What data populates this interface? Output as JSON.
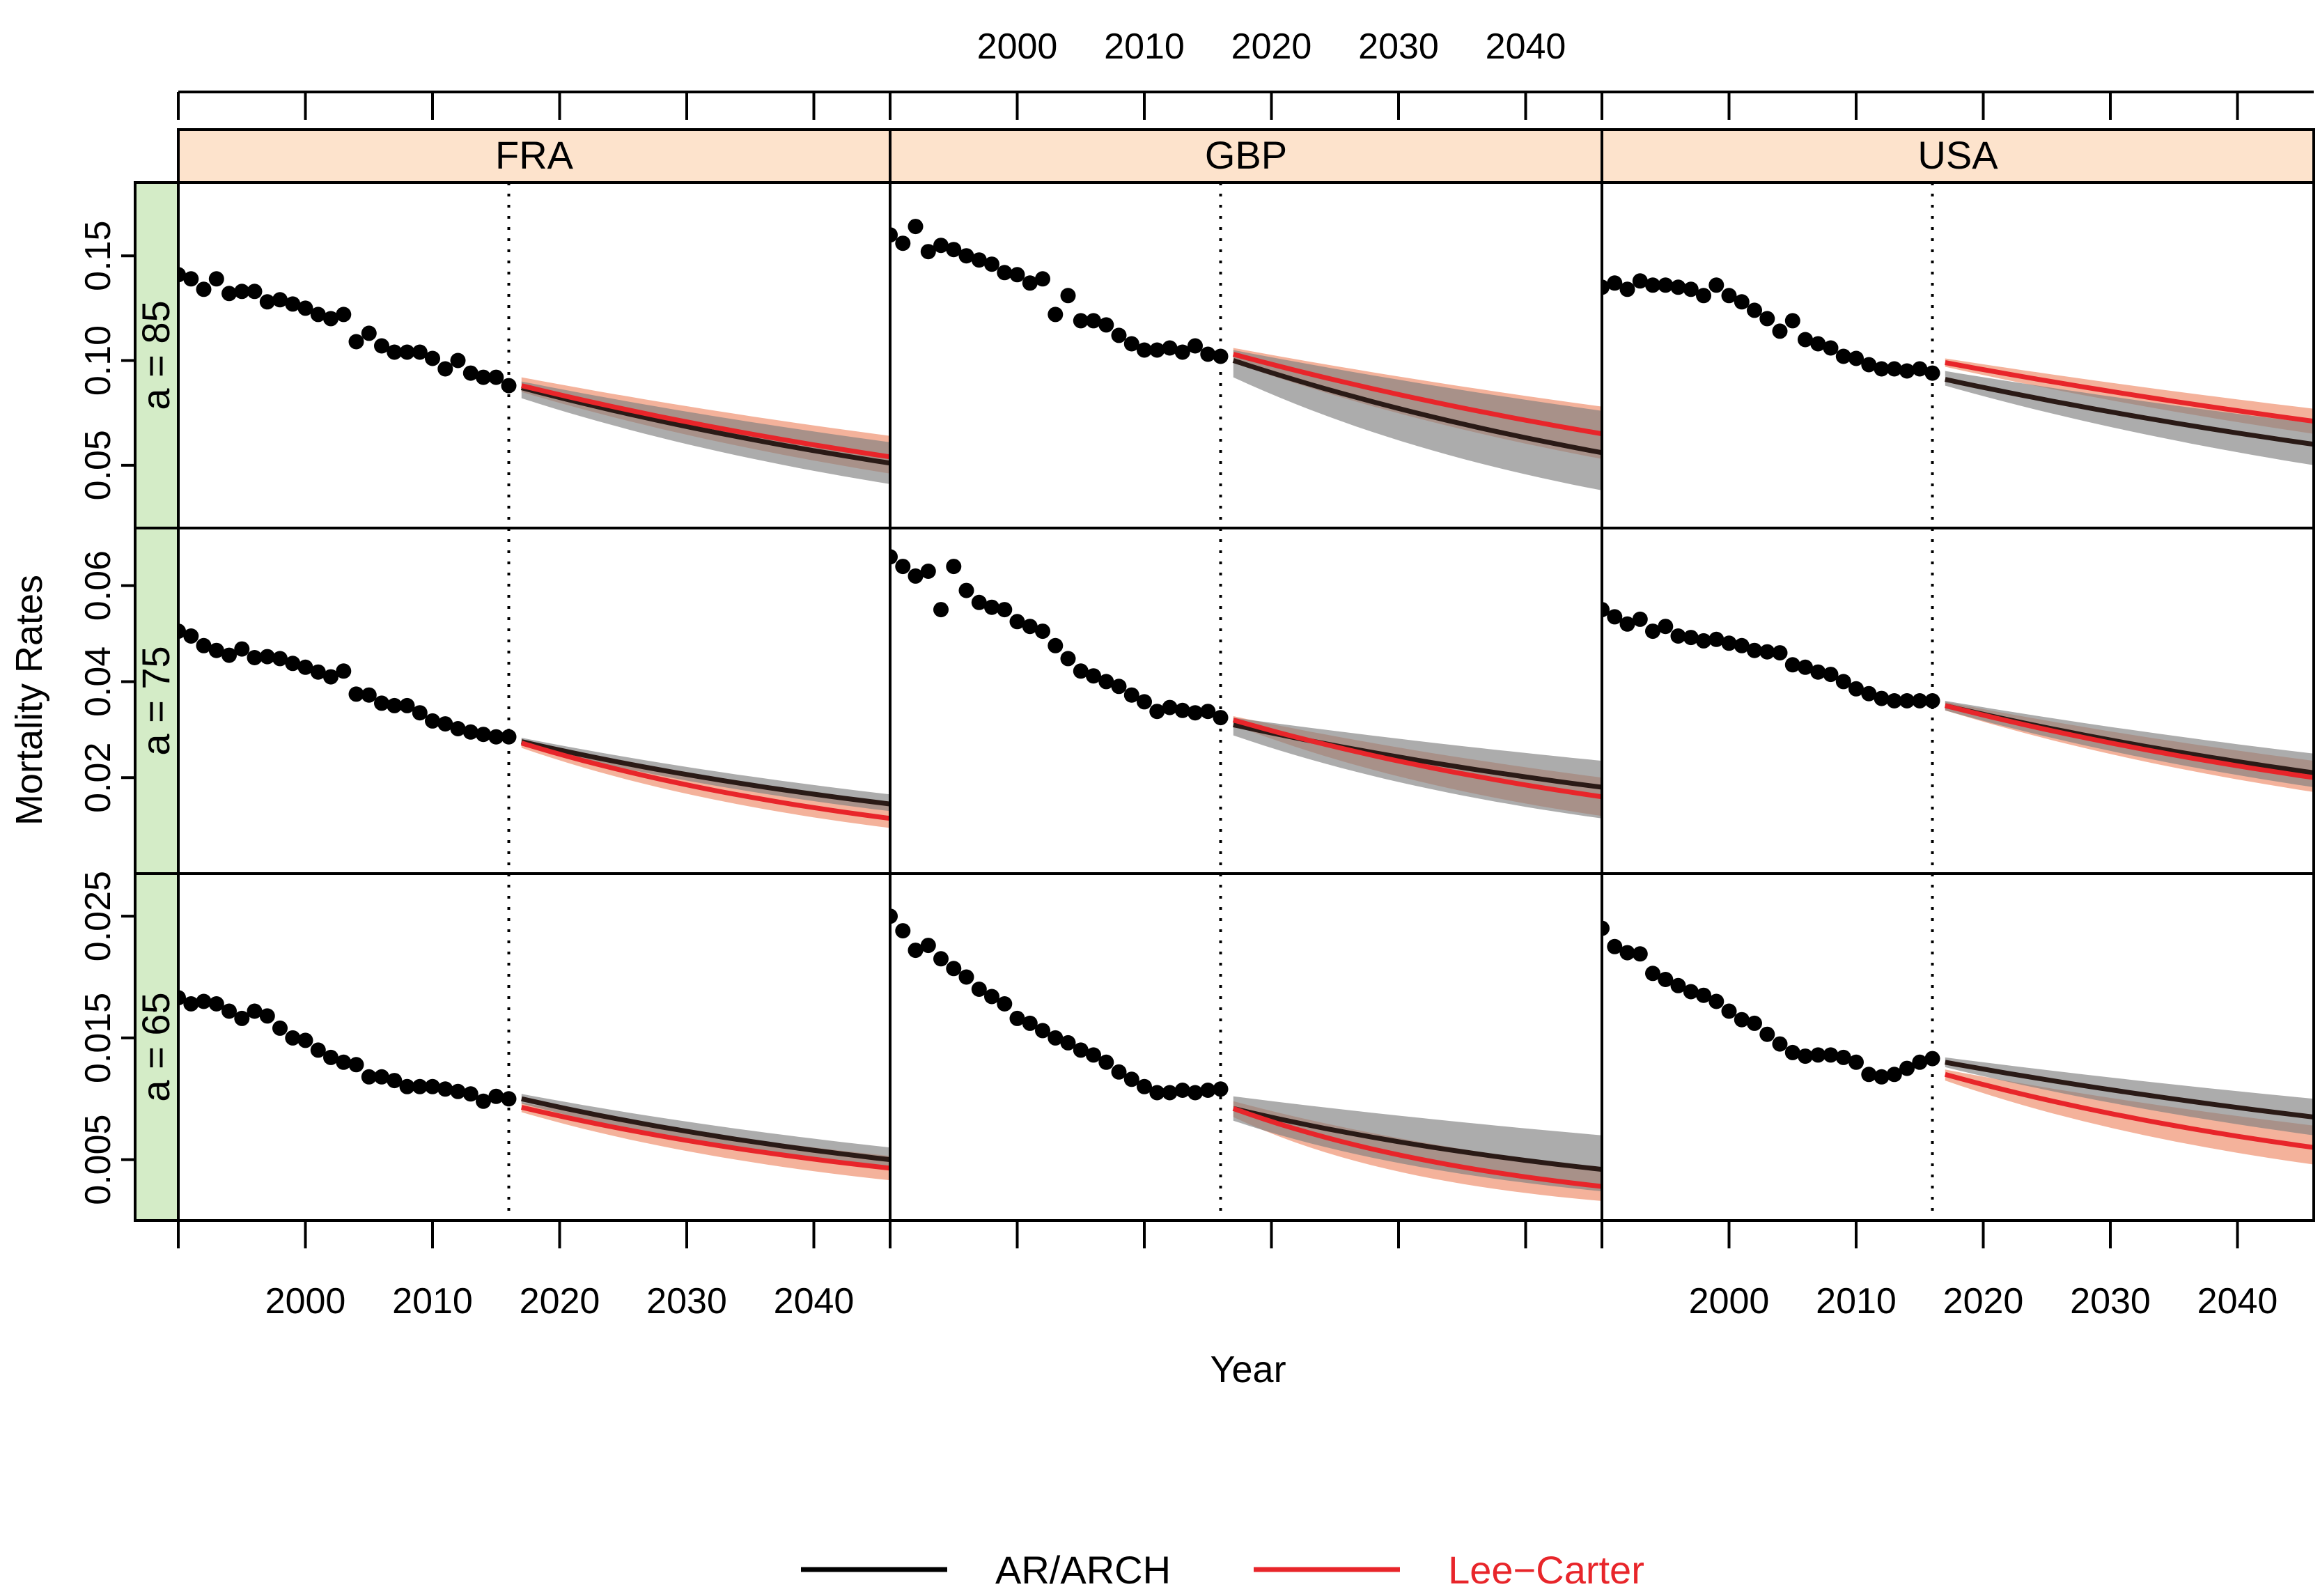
{
  "chart_data": {
    "type": "line",
    "title": "",
    "xlabel": "Year",
    "ylabel": "Mortality Rates",
    "xlim": [
      1990,
      2046
    ],
    "xticks": [
      2000,
      2010,
      2020,
      2030,
      2040
    ],
    "cutoff_year": 2016,
    "x_observed": [
      1990,
      1991,
      1992,
      1993,
      1994,
      1995,
      1996,
      1997,
      1998,
      1999,
      2000,
      2001,
      2002,
      2003,
      2004,
      2005,
      2006,
      2007,
      2008,
      2009,
      2010,
      2011,
      2012,
      2013,
      2014,
      2015,
      2016
    ],
    "x_forecast": [
      2017,
      2046
    ],
    "countries": [
      "FRA",
      "GBP",
      "USA"
    ],
    "ages": [
      {
        "label": "a = 85",
        "ylim": [
          0.02,
          0.185
        ],
        "yticks": [
          0.05,
          0.1,
          0.15
        ],
        "tick_labels": [
          "0.05",
          "0.10",
          "0.15"
        ]
      },
      {
        "label": "a = 75",
        "ylim": [
          0.0,
          0.072
        ],
        "yticks": [
          0.02,
          0.04,
          0.06
        ],
        "tick_labels": [
          "0.02",
          "0.04",
          "0.06"
        ]
      },
      {
        "label": "a = 65",
        "ylim": [
          0.0,
          0.0285
        ],
        "yticks": [
          0.005,
          0.015,
          0.025
        ],
        "tick_labels": [
          "0.005",
          "0.015",
          "0.025"
        ]
      }
    ],
    "panels": [
      {
        "country": "FRA",
        "age": "a = 85",
        "observed": [
          0.141,
          0.139,
          0.134,
          0.139,
          0.132,
          0.133,
          0.133,
          0.128,
          0.129,
          0.127,
          0.125,
          0.122,
          0.12,
          0.122,
          0.109,
          0.113,
          0.107,
          0.104,
          0.104,
          0.104,
          0.101,
          0.096,
          0.1,
          0.094,
          0.092,
          0.092,
          0.088
        ],
        "arch": {
          "start": 0.087,
          "end": 0.051,
          "lo_start": 0.082,
          "lo_end": 0.041,
          "hi_start": 0.09,
          "hi_end": 0.061
        },
        "lc": {
          "start": 0.088,
          "end": 0.054,
          "lo_start": 0.085,
          "lo_end": 0.046,
          "hi_start": 0.092,
          "hi_end": 0.064
        }
      },
      {
        "country": "GBP",
        "age": "a = 85",
        "observed": [
          0.16,
          0.156,
          0.164,
          0.152,
          0.155,
          0.153,
          0.15,
          0.148,
          0.146,
          0.142,
          0.141,
          0.137,
          0.139,
          0.122,
          0.131,
          0.119,
          0.119,
          0.117,
          0.112,
          0.108,
          0.105,
          0.105,
          0.106,
          0.104,
          0.107,
          0.103,
          0.102
        ],
        "arch": {
          "start": 0.1,
          "end": 0.056,
          "lo_start": 0.092,
          "lo_end": 0.038,
          "hi_start": 0.105,
          "hi_end": 0.076
        },
        "lc": {
          "start": 0.103,
          "end": 0.065,
          "lo_start": 0.099,
          "lo_end": 0.053,
          "hi_start": 0.106,
          "hi_end": 0.078
        }
      },
      {
        "country": "USA",
        "age": "a = 85",
        "observed": [
          0.135,
          0.137,
          0.134,
          0.138,
          0.136,
          0.136,
          0.135,
          0.134,
          0.131,
          0.136,
          0.131,
          0.128,
          0.124,
          0.12,
          0.114,
          0.119,
          0.11,
          0.108,
          0.106,
          0.102,
          0.101,
          0.098,
          0.096,
          0.096,
          0.095,
          0.096,
          0.094
        ],
        "arch": {
          "start": 0.091,
          "end": 0.06,
          "lo_start": 0.088,
          "lo_end": 0.05,
          "hi_start": 0.095,
          "hi_end": 0.07
        },
        "lc": {
          "start": 0.099,
          "end": 0.071,
          "lo_start": 0.097,
          "lo_end": 0.065,
          "hi_start": 0.101,
          "hi_end": 0.077
        }
      },
      {
        "country": "FRA",
        "age": "a = 75",
        "observed": [
          0.0505,
          0.0495,
          0.0475,
          0.0465,
          0.0455,
          0.0468,
          0.045,
          0.0452,
          0.0448,
          0.0438,
          0.043,
          0.042,
          0.041,
          0.0422,
          0.0374,
          0.0372,
          0.0355,
          0.035,
          0.035,
          0.0335,
          0.0318,
          0.0312,
          0.0302,
          0.0295,
          0.029,
          0.0285,
          0.0285
        ],
        "arch": {
          "start": 0.0275,
          "end": 0.0145,
          "lo_start": 0.0268,
          "lo_end": 0.013,
          "hi_start": 0.0283,
          "hi_end": 0.0165
        },
        "lc": {
          "start": 0.0272,
          "end": 0.0115,
          "lo_start": 0.0262,
          "lo_end": 0.0095,
          "hi_start": 0.028,
          "hi_end": 0.014
        }
      },
      {
        "country": "GBP",
        "age": "a = 75",
        "observed": [
          0.066,
          0.064,
          0.062,
          0.063,
          0.055,
          0.064,
          0.059,
          0.0565,
          0.0555,
          0.055,
          0.0525,
          0.0515,
          0.0505,
          0.0475,
          0.0448,
          0.0422,
          0.0412,
          0.04,
          0.039,
          0.0372,
          0.0358,
          0.0338,
          0.0346,
          0.034,
          0.0335,
          0.0338,
          0.0325
        ],
        "arch": {
          "start": 0.031,
          "end": 0.018,
          "lo_start": 0.0288,
          "lo_end": 0.0115,
          "hi_start": 0.0325,
          "hi_end": 0.0235
        },
        "lc": {
          "start": 0.032,
          "end": 0.016,
          "lo_start": 0.031,
          "lo_end": 0.012,
          "hi_start": 0.0328,
          "hi_end": 0.02
        }
      },
      {
        "country": "USA",
        "age": "a = 75",
        "observed": [
          0.055,
          0.0535,
          0.052,
          0.053,
          0.0505,
          0.0515,
          0.0495,
          0.0492,
          0.0485,
          0.0488,
          0.048,
          0.0475,
          0.0465,
          0.0462,
          0.046,
          0.0435,
          0.043,
          0.042,
          0.0415,
          0.04,
          0.0385,
          0.0375,
          0.0365,
          0.036,
          0.036,
          0.036,
          0.036
        ],
        "arch": {
          "start": 0.035,
          "end": 0.021,
          "lo_start": 0.034,
          "lo_end": 0.018,
          "hi_start": 0.036,
          "hi_end": 0.025
        },
        "lc": {
          "start": 0.035,
          "end": 0.02,
          "lo_start": 0.034,
          "lo_end": 0.017,
          "hi_start": 0.0358,
          "hi_end": 0.0235
        }
      },
      {
        "country": "FRA",
        "age": "a = 65",
        "observed": [
          0.0183,
          0.0178,
          0.018,
          0.0178,
          0.0172,
          0.0166,
          0.0172,
          0.0168,
          0.0158,
          0.015,
          0.0148,
          0.014,
          0.0134,
          0.013,
          0.0128,
          0.0118,
          0.0118,
          0.0115,
          0.011,
          0.011,
          0.011,
          0.0108,
          0.0106,
          0.0104,
          0.0098,
          0.0102,
          0.01
        ],
        "arch": {
          "start": 0.01,
          "end": 0.005,
          "lo_start": 0.0096,
          "lo_end": 0.0042,
          "hi_start": 0.0104,
          "hi_end": 0.006
        },
        "lc": {
          "start": 0.0093,
          "end": 0.0043,
          "lo_start": 0.0089,
          "lo_end": 0.0033,
          "hi_start": 0.0097,
          "hi_end": 0.0053
        }
      },
      {
        "country": "GBP",
        "age": "a = 65",
        "observed": [
          0.025,
          0.0238,
          0.0222,
          0.0226,
          0.0215,
          0.0207,
          0.02,
          0.019,
          0.0184,
          0.0178,
          0.0166,
          0.0162,
          0.0156,
          0.015,
          0.0146,
          0.014,
          0.0136,
          0.013,
          0.0122,
          0.0116,
          0.011,
          0.0105,
          0.0105,
          0.0107,
          0.0105,
          0.0107,
          0.0108
        ],
        "arch": {
          "start": 0.0092,
          "end": 0.0042,
          "lo_start": 0.0082,
          "lo_end": 0.0024,
          "hi_start": 0.0102,
          "hi_end": 0.007
        },
        "lc": {
          "start": 0.0092,
          "end": 0.0028,
          "lo_start": 0.0085,
          "lo_end": 0.0016,
          "hi_start": 0.0098,
          "hi_end": 0.0043
        }
      },
      {
        "country": "USA",
        "age": "a = 65",
        "observed": [
          0.024,
          0.0225,
          0.022,
          0.0219,
          0.0203,
          0.0198,
          0.0193,
          0.0188,
          0.0185,
          0.018,
          0.0172,
          0.0165,
          0.0162,
          0.0153,
          0.0145,
          0.0138,
          0.0135,
          0.0136,
          0.0136,
          0.0134,
          0.013,
          0.012,
          0.0118,
          0.012,
          0.0125,
          0.013,
          0.0133
        ],
        "arch": {
          "start": 0.013,
          "end": 0.0085,
          "lo_start": 0.0126,
          "lo_end": 0.007,
          "hi_start": 0.0134,
          "hi_end": 0.01
        },
        "lc": {
          "start": 0.012,
          "end": 0.006,
          "lo_start": 0.0115,
          "lo_end": 0.0046,
          "hi_start": 0.0124,
          "hi_end": 0.0078
        }
      }
    ],
    "legend": [
      {
        "label": "AR/ARCH",
        "color": "#000000"
      },
      {
        "label": "Lee−Carter",
        "color": "#e8252a"
      }
    ],
    "colors": {
      "strip_top": "#fde3cc",
      "strip_side": "#d4ecc7",
      "arch_line": "#2a1a16",
      "arch_band": "#7f7f7f",
      "lc_line": "#e8252a",
      "lc_band": "#f2a58a",
      "points": "#000000"
    }
  }
}
